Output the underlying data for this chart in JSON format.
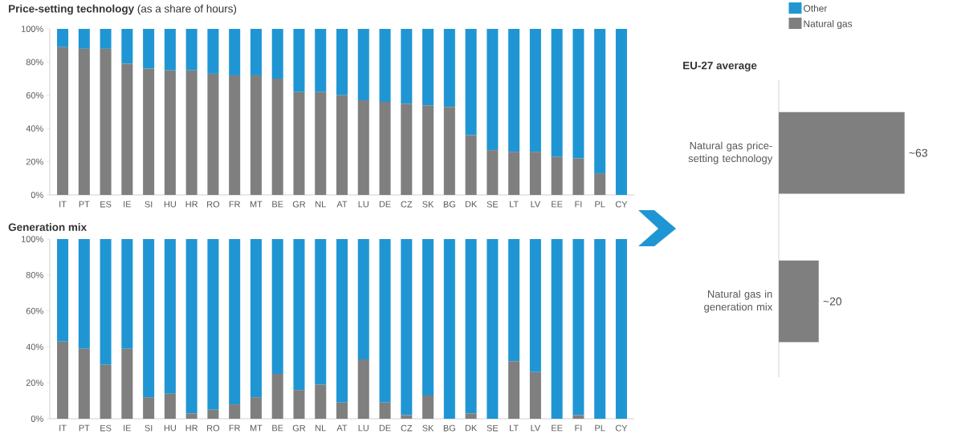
{
  "chart_data": [
    {
      "type": "bar",
      "stacked": true,
      "title": "**Price-setting technology** (as a share of hours)",
      "categories": [
        "IT",
        "PT",
        "ES",
        "IE",
        "SI",
        "HU",
        "HR",
        "RO",
        "FR",
        "MT",
        "BE",
        "GR",
        "NL",
        "AT",
        "LU",
        "DE",
        "CZ",
        "SK",
        "BG",
        "DK",
        "SE",
        "LT",
        "LV",
        "EE",
        "FI",
        "PL",
        "CY"
      ],
      "series": [
        {
          "name": "Natural gas",
          "color": "#7f7f7f",
          "values": [
            89,
            88,
            88,
            79,
            76,
            75,
            75,
            73,
            72,
            72,
            70,
            62,
            62,
            60,
            57,
            56,
            55,
            54,
            53,
            36,
            27,
            26,
            26,
            23,
            22,
            13,
            0
          ]
        },
        {
          "name": "Other",
          "color": "#1f96d3",
          "values": [
            11,
            12,
            12,
            21,
            24,
            25,
            25,
            27,
            28,
            28,
            30,
            38,
            38,
            40,
            43,
            44,
            45,
            46,
            47,
            64,
            73,
            74,
            74,
            77,
            78,
            87,
            100
          ]
        }
      ],
      "ylim": [
        0,
        100
      ],
      "yticks": [
        {
          "value": 0,
          "label": "0%"
        },
        {
          "value": 20,
          "label": "20%"
        },
        {
          "value": 40,
          "label": "40%"
        },
        {
          "value": 60,
          "label": "60%"
        },
        {
          "value": 80,
          "label": "80%"
        },
        {
          "value": 100,
          "label": "100%"
        }
      ],
      "legend": "top right"
    },
    {
      "type": "bar",
      "stacked": true,
      "title": "Generation mix",
      "categories": [
        "IT",
        "PT",
        "ES",
        "IE",
        "SI",
        "HU",
        "HR",
        "RO",
        "FR",
        "MT",
        "BE",
        "GR",
        "NL",
        "AT",
        "LU",
        "DE",
        "CZ",
        "SK",
        "BG",
        "DK",
        "SE",
        "LT",
        "LV",
        "EE",
        "FI",
        "PL",
        "CY"
      ],
      "series": [
        {
          "color": "#7f7f7f",
          "values": [
            43,
            39,
            30,
            39,
            12,
            14,
            3,
            5,
            8,
            12,
            25,
            16,
            19,
            9,
            33,
            9,
            2,
            13,
            0,
            3,
            0,
            32,
            26,
            0,
            2,
            0,
            0
          ]
        },
        {
          "color": "#1f96d3",
          "values": [
            57,
            61,
            70,
            61,
            88,
            86,
            97,
            95,
            92,
            88,
            75,
            84,
            81,
            91,
            67,
            91,
            98,
            87,
            100,
            97,
            100,
            68,
            74,
            100,
            98,
            100,
            100
          ]
        }
      ],
      "ylim": [
        0,
        100
      ],
      "yticks": [
        {
          "value": 0,
          "label": "0%"
        },
        {
          "value": 20,
          "label": "20%"
        },
        {
          "value": 40,
          "label": "40%"
        },
        {
          "value": 60,
          "label": "60%"
        },
        {
          "value": 80,
          "label": "80%"
        },
        {
          "value": 100,
          "label": "100%"
        }
      ]
    },
    {
      "type": "bar",
      "orientation": "horizontal",
      "title": "EU-27 average",
      "categories": [
        "Natural gas price-setting technology",
        "Natural gas in generation mix"
      ],
      "values": [
        63,
        20
      ],
      "value_labels": [
        "~63",
        "~20"
      ],
      "color": "#7f7f7f"
    }
  ]
}
